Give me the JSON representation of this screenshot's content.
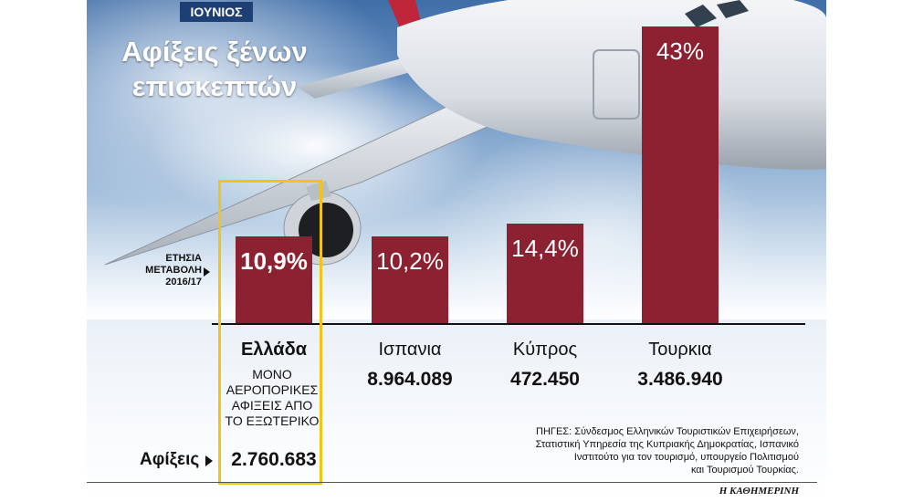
{
  "month": "ΙΟΥΝΙΟΣ",
  "title": [
    "Αφίξεις ξένων",
    "επισκεπτών"
  ],
  "change_label": [
    "ΕΤΗΣΙΑ",
    "ΜΕΤΑΒΟΛΗ",
    "2016/17"
  ],
  "arrivals_label": "Αφίξεις",
  "greece_note": [
    "ΜΟΝΟ",
    "ΑΕΡΟΠΟΡΙΚΕΣ",
    "ΑΦΙΞΕΙΣ ΑΠΟ",
    "ΤΟ ΕΞΩΤΕΡΙΚΟ"
  ],
  "sources": [
    "ΠΗΓΕΣ: Σύνδεσμος Ελληνικών Τουριστικών Επιχειρήσεων,",
    "Στατιστική Υπηρεσία της Κυπριακής Δημοκρατίας, Ισπανικό",
    "Ινστιτούτο για τον τουρισμό, υπουργείο Πολιτισμού",
    "και Τουρισμού Τουρκίας."
  ],
  "publisher": "Η ΚΑΘΗΜΕΡΙΝΗ",
  "colors": {
    "bar": "#8c2231",
    "highlight": "#f0c419",
    "month_badge": "#1d3f73"
  },
  "chart_data": {
    "type": "bar",
    "categories": [
      "Ελλάδα",
      "Ισπανία",
      "Κύπρος",
      "Τουρκία"
    ],
    "values": [
      10.9,
      10.2,
      14.4,
      43
    ],
    "value_labels": [
      "10,9%",
      "10,2%",
      "14,4%",
      "43%"
    ],
    "arrivals": [
      "2.760.683",
      "8.964.089",
      "472.450",
      "3.486.940"
    ],
    "country_labels": [
      "Ελλάδα",
      "Ισπανια",
      "Κύπρος",
      "Τουρκια"
    ],
    "highlighted_category": "Ελλάδα",
    "ylim": [
      0,
      43
    ],
    "grid": false
  }
}
